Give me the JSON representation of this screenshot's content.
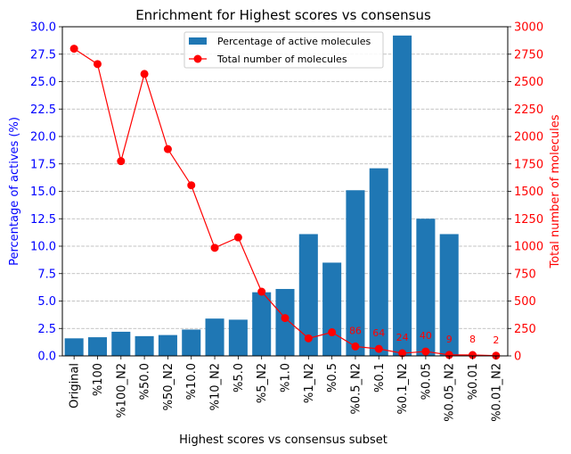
{
  "chart_data": {
    "type": "bar",
    "title": "Enrichment for Highest scores vs consensus",
    "xlabel": "Highest scores vs consensus subset",
    "ylabel": "Percentage of actives (%)",
    "ylabel_right": "Total number of molecules",
    "categories": [
      "Original",
      "%100",
      "%100_N2",
      "%50.0",
      "%50_N2",
      "%10.0",
      "%10_N2",
      "%5.0",
      "%5_N2",
      "%1.0",
      "%1_N2",
      "%0.5",
      "%0.5_N2",
      "%0.1",
      "%0.1_N2",
      "%0.05",
      "%0.05_N2",
      "%0.01",
      "%0.01_N2"
    ],
    "ylim": [
      0,
      30
    ],
    "ylim_right": [
      0,
      3000
    ],
    "yticks": [
      "0.0",
      "2.5",
      "5.0",
      "7.5",
      "10.0",
      "12.5",
      "15.0",
      "17.5",
      "20.0",
      "22.5",
      "25.0",
      "27.5",
      "30.0"
    ],
    "yticks_right": [
      "0",
      "250",
      "500",
      "750",
      "1000",
      "1250",
      "1500",
      "1750",
      "2000",
      "2250",
      "2500",
      "2750",
      "3000"
    ],
    "grid": "horizontal dashed",
    "legend_position": "top-center",
    "series": [
      {
        "name": "Percentage of active molecules",
        "type": "bar",
        "axis": "left",
        "color": "#1f77b4",
        "values": [
          1.6,
          1.7,
          2.2,
          1.8,
          1.9,
          2.4,
          3.4,
          3.3,
          5.8,
          6.1,
          11.1,
          8.5,
          15.1,
          17.1,
          29.2,
          12.5,
          11.1,
          0.0,
          0.0
        ]
      },
      {
        "name": "Total number of molecules",
        "type": "line",
        "axis": "right",
        "color": "#ff0000",
        "values": [
          2800,
          2660,
          1775,
          2570,
          1885,
          1555,
          985,
          1080,
          585,
          345,
          160,
          215,
          86,
          64,
          24,
          40,
          9,
          8,
          2
        ]
      }
    ],
    "data_labels": [
      {
        "index": 12,
        "text": "86"
      },
      {
        "index": 13,
        "text": "64"
      },
      {
        "index": 14,
        "text": "24"
      },
      {
        "index": 15,
        "text": "40"
      },
      {
        "index": 16,
        "text": "9"
      },
      {
        "index": 17,
        "text": "8"
      },
      {
        "index": 18,
        "text": "2"
      }
    ],
    "colors": {
      "left_axis": "#0000ff",
      "right_axis": "#ff0000",
      "bar": "#1f77b4",
      "line": "#ff0000",
      "grid": "#b0b0b0"
    }
  }
}
